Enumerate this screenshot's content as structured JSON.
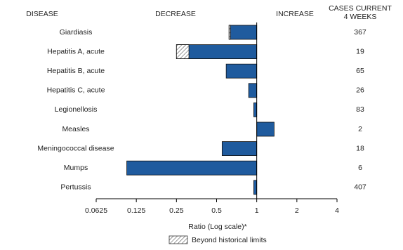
{
  "chart_data": {
    "type": "bar",
    "orientation": "horizontal",
    "log_scale": true,
    "headers": {
      "disease": "DISEASE",
      "decrease": "DECREASE",
      "increase": "INCREASE",
      "cases": [
        "CASES CURRENT",
        "4 WEEKS"
      ]
    },
    "categories": [
      "Giardiasis",
      "Hepatitis A, acute",
      "Hepatitis B, acute",
      "Hepatitis C, acute",
      "Legionellosis",
      "Measles",
      "Meningococcal disease",
      "Mumps",
      "Pertussis"
    ],
    "values": [
      0.62,
      0.25,
      0.59,
      0.87,
      0.95,
      1.35,
      0.55,
      0.106,
      0.95
    ],
    "limits": [
      0.635,
      0.31,
      null,
      null,
      null,
      null,
      null,
      null,
      null
    ],
    "cases": [
      367,
      19,
      65,
      26,
      83,
      2,
      18,
      6,
      407
    ],
    "color": "#1f5b9e",
    "limit_label": "Beyond historical limits",
    "xlabel": "Ratio (Log scale)*",
    "xlim": [
      0.0625,
      4
    ],
    "xticks": [
      0.0625,
      0.125,
      0.25,
      0.5,
      1,
      2,
      4
    ]
  }
}
